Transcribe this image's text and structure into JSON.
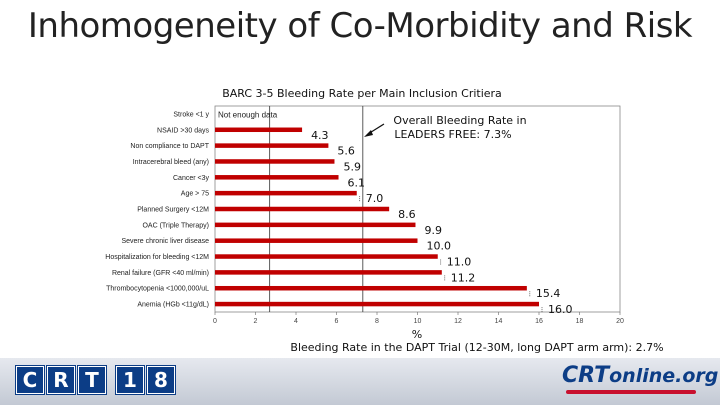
{
  "slide": {
    "title": "Inhomogeneity of Co-Morbidity and Risk"
  },
  "chart_data": {
    "type": "bar",
    "orientation": "horizontal",
    "title": "BARC 3-5 Bleeding Rate per Main Inclusion Critiera",
    "xlabel": "%",
    "ylabel": "",
    "xlim": [
      0,
      20
    ],
    "xticks": [
      0,
      2,
      4,
      6,
      8,
      10,
      12,
      14,
      16,
      18,
      20
    ],
    "grid": false,
    "bar_color": "#c00000",
    "categories": [
      "Stroke <1 y",
      "NSAID >30 days",
      "Non compliance to DAPT",
      "Intracerebral bleed (any)",
      "Cancer <3y",
      "Age > 75",
      "Planned Surgery <12M",
      "OAC (Triple Therapy)",
      "Severe chronic liver disease",
      "Hospitalization for bleeding <12M",
      "Renal failure (GFR <40 ml/min)",
      "Thrombocytopenia <1000,000/uL",
      "Anemia (HGb <11g/dL)"
    ],
    "values": [
      null,
      4.3,
      5.6,
      5.9,
      6.1,
      7.0,
      8.6,
      9.9,
      10.0,
      11.0,
      11.2,
      15.4,
      16.0
    ],
    "value_labels": [
      "",
      "4.3",
      "5.6",
      "5.9",
      "6.1",
      "7.0",
      "8.6",
      "9.9",
      "10.0",
      "11.0",
      "11.2",
      "15.4",
      "16.0"
    ],
    "annotations": {
      "not_enough_data": "Not enough data",
      "overall_line1": "Overall Bleeding Rate in",
      "overall_line2": "LEADERS FREE: 7.3%",
      "reference_lines": [
        2.7,
        7.3
      ],
      "dapt_trial": "Bleeding Rate in the DAPT Trial (12-30M, long DAPT arm arm): 2.7%"
    }
  },
  "footer": {
    "crt_logo": [
      "C",
      "R",
      "T",
      "1",
      "8"
    ],
    "crtonline_logo": {
      "main": "CRT",
      "suffix": "online.org"
    }
  }
}
